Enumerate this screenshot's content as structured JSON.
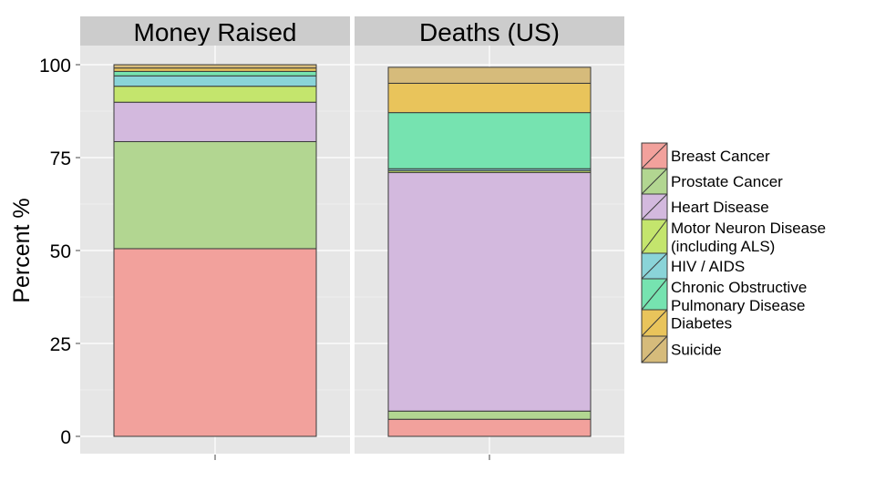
{
  "chart_data": {
    "type": "bar",
    "stacked": true,
    "ylabel": "Percent  %",
    "ylim": [
      0,
      100
    ],
    "yticks": [
      0,
      25,
      50,
      75,
      100
    ],
    "grid": true,
    "legend_position": "right",
    "panels": [
      "Money Raised",
      "Deaths (US)"
    ],
    "series": [
      {
        "name": "Breast Cancer",
        "values": [
          50.5,
          4.6
        ]
      },
      {
        "name": "Prostate Cancer",
        "values": [
          28.8,
          2.2
        ]
      },
      {
        "name": "Heart Disease",
        "values": [
          10.6,
          64.2
        ]
      },
      {
        "name": "Motor Neuron Disease\n(including ALS)",
        "values": [
          4.3,
          0.5
        ]
      },
      {
        "name": "HIV / AIDS",
        "values": [
          2.8,
          0.5
        ]
      },
      {
        "name": "Chronic Obstructive\nPulmonary Disease",
        "values": [
          1.2,
          15.1
        ]
      },
      {
        "name": "Diabetes",
        "values": [
          0.9,
          7.9
        ]
      },
      {
        "name": "Suicide",
        "values": [
          0.9,
          4.3
        ]
      }
    ],
    "colors": [
      "#f2a19c",
      "#b2d691",
      "#d3b9de",
      "#c4e56d",
      "#8ad4d8",
      "#76e3b0",
      "#e9c45b",
      "#d6bb7b"
    ]
  }
}
